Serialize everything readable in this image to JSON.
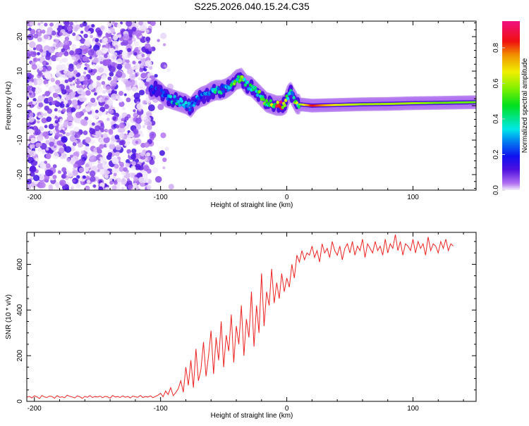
{
  "chart_data": [
    {
      "type": "heatmap",
      "title": "S225.2026.040.15.24.C35",
      "xlabel": "Height of straight line (km)",
      "ylabel": "Frequency (Hz)",
      "xlim": [
        -206,
        150
      ],
      "ylim": [
        -24.5,
        24.5
      ],
      "xticks": [
        "-200",
        "-100",
        "0",
        "100"
      ],
      "xtick_values": [
        -200,
        -100,
        0,
        100
      ],
      "yticks": [
        "20",
        "10",
        "0",
        "-10",
        "-20"
      ],
      "ytick_values": [
        20,
        10,
        0,
        -10,
        -20
      ],
      "noise_region_km": [
        -206,
        -88
      ],
      "ridge": {
        "x": [
          -108,
          -104,
          -100,
          -96,
          -92,
          -88,
          -84,
          -80,
          -76,
          -72,
          -68,
          -64,
          -60,
          -56,
          -52,
          -48,
          -44,
          -40,
          -36,
          -32,
          -28,
          -24,
          -20,
          -16,
          -12,
          -8,
          -4,
          -1,
          1,
          3,
          5,
          8,
          12,
          20,
          40,
          60,
          80,
          100,
          120,
          150
        ],
        "freq": [
          4.5,
          5,
          4,
          2.5,
          2,
          1.5,
          1,
          0.5,
          -0.5,
          1.5,
          2.5,
          3,
          4,
          4.5,
          4.5,
          5,
          6,
          7.5,
          8,
          6,
          5.5,
          4,
          2.5,
          1,
          0.5,
          0,
          0,
          0.5,
          3,
          4,
          2.5,
          0.5,
          0.3,
          0,
          0.2,
          0.4,
          0.5,
          0.7,
          0.8,
          1
        ],
        "amplitude": [
          0.2,
          0.25,
          0.2,
          0.3,
          0.35,
          0.4,
          0.35,
          0.4,
          0.3,
          0.3,
          0.3,
          0.35,
          0.35,
          0.4,
          0.4,
          0.45,
          0.5,
          0.55,
          0.55,
          0.5,
          0.5,
          0.55,
          0.6,
          0.55,
          0.6,
          0.9,
          0.9,
          0.7,
          0.5,
          0.55,
          0.5,
          0.6,
          0.6,
          0.85,
          0.65,
          0.6,
          0.6,
          0.6,
          0.55,
          0.55
        ]
      },
      "colorbar": {
        "label": "Normalized spectral amplitude",
        "range": [
          0,
          0.95
        ],
        "ticks": [
          "0.0",
          "0.2",
          "0.4",
          "0.6",
          "0.8"
        ],
        "tick_values": [
          0,
          0.2,
          0.4,
          0.6,
          0.8
        ]
      }
    },
    {
      "type": "line",
      "xlabel": "Height of straight line (km)",
      "ylabel": "SNR (10 * v/v)",
      "xlim": [
        -206,
        150
      ],
      "ylim": [
        0,
        740
      ],
      "xticks": [
        "-200",
        "-100",
        "0",
        "100"
      ],
      "xtick_values": [
        -200,
        -100,
        0,
        100
      ],
      "yticks": [
        "0",
        "200",
        "400",
        "600"
      ],
      "ytick_values": [
        0,
        200,
        400,
        600
      ],
      "color": "#ee2222",
      "x_start": -206,
      "x_step": 2,
      "y": [
        18,
        22,
        15,
        24,
        20,
        12,
        26,
        19,
        17,
        23,
        21,
        14,
        25,
        18,
        20,
        16,
        27,
        22,
        19,
        15,
        24,
        20,
        13,
        22,
        18,
        25,
        17,
        21,
        19,
        23,
        16,
        22,
        20,
        14,
        26,
        19,
        21,
        17,
        24,
        18,
        22,
        15,
        23,
        20,
        18,
        26,
        17,
        21,
        19,
        24,
        16,
        22,
        27,
        35,
        20,
        45,
        30,
        60,
        25,
        38,
        55,
        90,
        40,
        150,
        70,
        180,
        60,
        230,
        90,
        140,
        260,
        110,
        200,
        310,
        120,
        280,
        180,
        350,
        150,
        290,
        220,
        380,
        170,
        330,
        250,
        420,
        200,
        360,
        280,
        480,
        240,
        420,
        300,
        560,
        330,
        480,
        420,
        580,
        430,
        520,
        450,
        560,
        480,
        540,
        500,
        600,
        540,
        640,
        610,
        660,
        620,
        650,
        640,
        680,
        630,
        660,
        610,
        690,
        650,
        670,
        630,
        700,
        660,
        640,
        680,
        620,
        670,
        690,
        650,
        700,
        640,
        680,
        660,
        710,
        630,
        690,
        670,
        650,
        700,
        660,
        680,
        640,
        710,
        650,
        690,
        670,
        730,
        660,
        700,
        640,
        690,
        680,
        660,
        710,
        650,
        700,
        670,
        690,
        640,
        720,
        660,
        690,
        680,
        650,
        700,
        670,
        710,
        660,
        690,
        680
      ]
    }
  ]
}
